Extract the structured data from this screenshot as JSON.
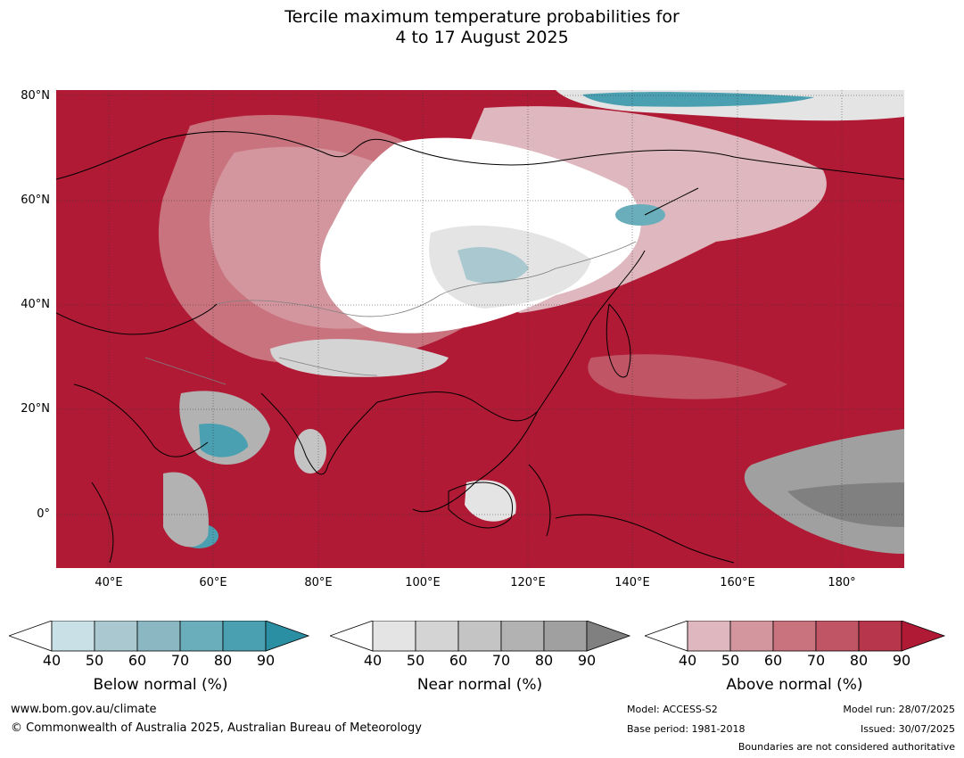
{
  "title": {
    "line1": "Tercile maximum temperature probabilities for",
    "line2": "4 to 17 August 2025"
  },
  "map": {
    "lat_labels": [
      "80°N",
      "60°N",
      "40°N",
      "20°N",
      "0°"
    ],
    "lon_labels": [
      "40°E",
      "60°E",
      "80°E",
      "100°E",
      "120°E",
      "140°E",
      "160°E",
      "180°"
    ],
    "colors": {
      "dominant_above": "#b01a35",
      "near_normal": "#e8e8e8",
      "below_normal": "#2a8fa3",
      "coastline": "#000000",
      "borders": "#808080"
    }
  },
  "colorbars": [
    {
      "name": "Below normal (%)",
      "ticks": [
        "40",
        "50",
        "60",
        "70",
        "80",
        "90"
      ],
      "colors": [
        "#ffffff",
        "#c8e0e6",
        "#a9c8cf",
        "#8ab7c2",
        "#6aaebb",
        "#4aa0b0",
        "#2a8fa3"
      ]
    },
    {
      "name": "Near normal (%)",
      "ticks": [
        "40",
        "50",
        "60",
        "70",
        "80",
        "90"
      ],
      "colors": [
        "#ffffff",
        "#e4e4e4",
        "#d4d4d4",
        "#c4c4c4",
        "#b2b2b2",
        "#a0a0a0",
        "#808080"
      ]
    },
    {
      "name": "Above normal (%)",
      "ticks": [
        "40",
        "50",
        "60",
        "70",
        "80",
        "90"
      ],
      "colors": [
        "#ffffff",
        "#deb8be",
        "#d4969e",
        "#c9737f",
        "#c05565",
        "#b8364b",
        "#b01a35"
      ]
    }
  ],
  "footer": {
    "website": "www.bom.gov.au/climate",
    "copyright": "© Commonwealth of Australia 2025, Australian Bureau of Meteorology",
    "model": "Model: ACCESS-S2",
    "base_period": "Base period: 1981-2018",
    "model_run": "Model run: 28/07/2025",
    "issued": "Issued: 30/07/2025",
    "disclaimer": "Boundaries are not considered authoritative"
  }
}
